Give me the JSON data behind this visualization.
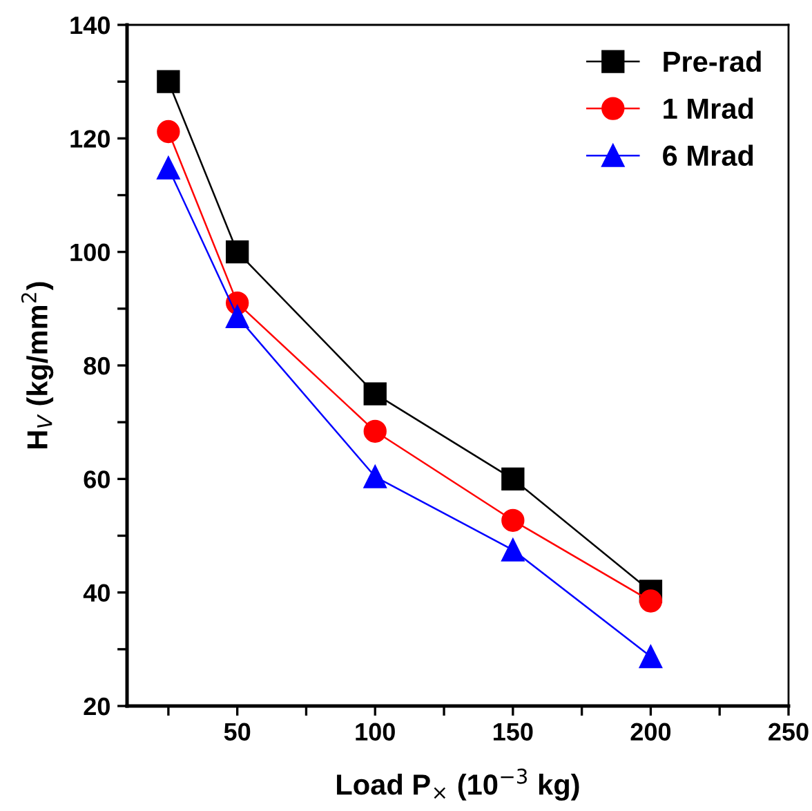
{
  "chart_data": {
    "type": "line",
    "xlabel": "Load P$_{×}$ (10$^{−3}$ kg)",
    "ylabel": "H$_{V}$ (kg/mm$^{2}$)",
    "x": [
      25,
      50,
      100,
      150,
      200
    ],
    "series": [
      {
        "name": "Pre-rad",
        "color": "#000000",
        "marker": "square",
        "values": [
          130,
          100,
          75,
          60,
          40.2
        ]
      },
      {
        "name": "1 Mrad",
        "color": "#ff0000",
        "marker": "circle",
        "values": [
          121.2,
          91,
          68.4,
          52.7,
          38.5
        ]
      },
      {
        "name": "6 Mrad",
        "color": "#0000ff",
        "marker": "triangle",
        "values": [
          114.8,
          88.6,
          60.4,
          47.5,
          28.7
        ]
      }
    ],
    "xlim": [
      10,
      250
    ],
    "xticks": [
      {
        "value": 25,
        "label": null
      },
      50,
      {
        "value": 75,
        "label": null
      },
      100,
      {
        "value": 125,
        "label": null
      },
      150,
      {
        "value": 175,
        "label": null
      },
      200,
      {
        "value": 225,
        "label": null
      },
      250
    ],
    "ylim": [
      20,
      140
    ],
    "yticks": [
      20,
      {
        "value": 30,
        "label": null
      },
      40,
      {
        "value": 50,
        "label": null
      },
      60,
      {
        "value": 70,
        "label": null
      },
      80,
      {
        "value": 90,
        "label": null
      },
      100,
      {
        "value": 110,
        "label": null
      },
      120,
      {
        "value": 130,
        "label": null
      },
      140
    ],
    "grid": false,
    "legend": "top right",
    "line_style": "solid"
  }
}
